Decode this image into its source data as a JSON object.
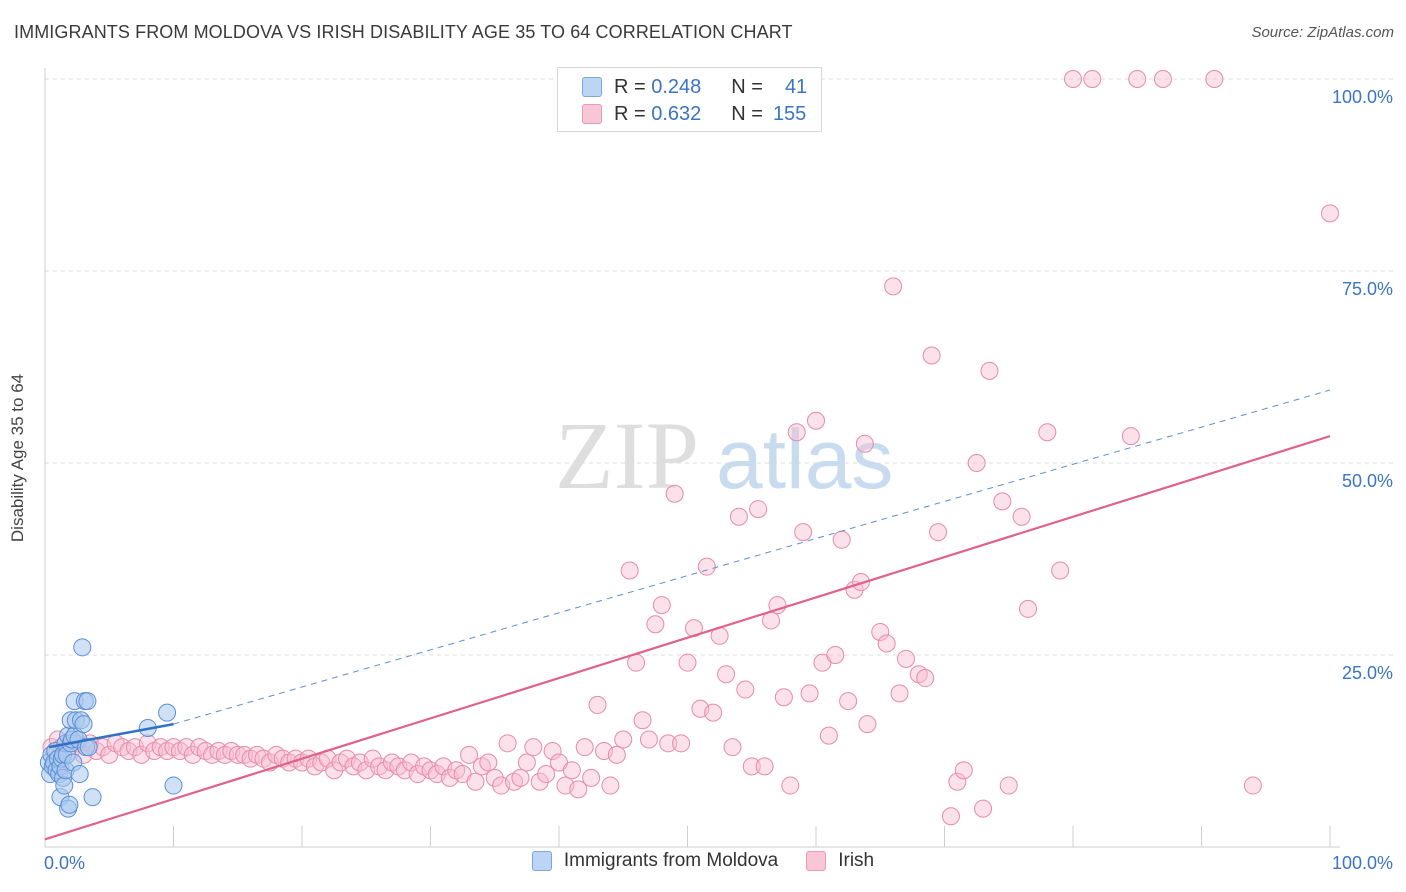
{
  "title": "IMMIGRANTS FROM MOLDOVA VS IRISH DISABILITY AGE 35 TO 64 CORRELATION CHART",
  "source": "Source: ZipAtlas.com",
  "watermark": {
    "zip": "ZIP",
    "atlas": "atlas"
  },
  "legend": {
    "rows": [
      {
        "r_label": "R =",
        "r_value": "0.248",
        "n_label": "N =",
        "n_value": "41"
      },
      {
        "r_label": "R =",
        "r_value": "0.632",
        "n_label": "N =",
        "n_value": "155"
      }
    ]
  },
  "bottom_legend": {
    "series1": "Immigrants from Moldova",
    "series2": "Irish"
  },
  "colors": {
    "blue_fill": "#a9c8ef",
    "blue_stroke": "#5b8fd6",
    "blue_line": "#3070c8",
    "pink_fill": "#f7bcd0",
    "pink_stroke": "#e88aaa",
    "pink_line": "#e0608e",
    "tick_label": "#3b74c5",
    "grid": "#dcdcdc"
  },
  "chart_data": {
    "type": "scatter",
    "title": "IMMIGRANTS FROM MOLDOVA VS IRISH DISABILITY AGE 35 TO 64 CORRELATION CHART",
    "xlabel": "",
    "ylabel": "Disability Age 35 to 64",
    "xlim": [
      0,
      100
    ],
    "ylim": [
      0,
      100
    ],
    "x_tick_labels": [
      "0.0%",
      "100.0%"
    ],
    "y_tick_labels": [
      "25.0%",
      "50.0%",
      "75.0%",
      "100.0%"
    ],
    "y_ticks": [
      25,
      50,
      75,
      100
    ],
    "series": [
      {
        "name": "Immigrants from Moldova",
        "R": 0.248,
        "N": 41,
        "trend_solid": [
          [
            0.3,
            13.0
          ],
          [
            10.0,
            16.0
          ]
        ],
        "trend_dashed": [
          [
            10.0,
            16.0
          ],
          [
            100,
            59.5
          ]
        ],
        "points": [
          [
            0.3,
            11
          ],
          [
            0.4,
            9.5
          ],
          [
            0.5,
            12
          ],
          [
            0.6,
            10.5
          ],
          [
            0.7,
            11
          ],
          [
            0.8,
            12.5
          ],
          [
            0.9,
            10
          ],
          [
            1.0,
            11.5
          ],
          [
            1.1,
            9.5
          ],
          [
            1.2,
            6.5
          ],
          [
            1.2,
            10.5
          ],
          [
            1.3,
            11.5
          ],
          [
            1.4,
            12
          ],
          [
            1.4,
            9
          ],
          [
            1.5,
            8
          ],
          [
            1.6,
            13.5
          ],
          [
            1.6,
            10
          ],
          [
            1.7,
            12
          ],
          [
            1.8,
            14.5
          ],
          [
            1.8,
            5
          ],
          [
            1.9,
            5.5
          ],
          [
            2.0,
            16.5
          ],
          [
            2.0,
            13.5
          ],
          [
            2.1,
            14
          ],
          [
            2.2,
            11
          ],
          [
            2.3,
            19
          ],
          [
            2.3,
            14.5
          ],
          [
            2.4,
            16.5
          ],
          [
            2.6,
            14
          ],
          [
            2.7,
            9.5
          ],
          [
            2.8,
            16.5
          ],
          [
            2.9,
            26
          ],
          [
            3.0,
            16
          ],
          [
            3.1,
            19
          ],
          [
            3.2,
            13
          ],
          [
            3.3,
            19
          ],
          [
            3.4,
            13
          ],
          [
            3.7,
            6.5
          ],
          [
            8.0,
            15.5
          ],
          [
            9.5,
            17.5
          ],
          [
            10.0,
            8
          ]
        ]
      },
      {
        "name": "Irish",
        "R": 0.632,
        "N": 155,
        "trend": [
          [
            0,
            1.0
          ],
          [
            100,
            53.5
          ]
        ],
        "points": [
          [
            0.5,
            13
          ],
          [
            0.8,
            12.5
          ],
          [
            1.0,
            14
          ],
          [
            1.3,
            13
          ],
          [
            1.6,
            13.5
          ],
          [
            2.0,
            12.5
          ],
          [
            2.5,
            13.5
          ],
          [
            3.0,
            12
          ],
          [
            3.5,
            13.5
          ],
          [
            4.0,
            12.5
          ],
          [
            4.5,
            13
          ],
          [
            5.0,
            12
          ],
          [
            5.5,
            13.5
          ],
          [
            6.0,
            13
          ],
          [
            6.5,
            12.5
          ],
          [
            7.0,
            13
          ],
          [
            7.5,
            12
          ],
          [
            8.0,
            13.5
          ],
          [
            8.5,
            12.5
          ],
          [
            9.0,
            13
          ],
          [
            9.5,
            12.5
          ],
          [
            10.0,
            13
          ],
          [
            10.5,
            12.5
          ],
          [
            11.0,
            13
          ],
          [
            11.5,
            12
          ],
          [
            12.0,
            13
          ],
          [
            12.5,
            12.5
          ],
          [
            13.0,
            12
          ],
          [
            13.5,
            12.5
          ],
          [
            14.0,
            12
          ],
          [
            14.5,
            12.5
          ],
          [
            15.0,
            12
          ],
          [
            15.5,
            12
          ],
          [
            16.0,
            11.5
          ],
          [
            16.5,
            12
          ],
          [
            17.0,
            11.5
          ],
          [
            17.5,
            11
          ],
          [
            18.0,
            12
          ],
          [
            18.5,
            11.5
          ],
          [
            19.0,
            11
          ],
          [
            19.5,
            11.5
          ],
          [
            20.0,
            11
          ],
          [
            20.5,
            11.5
          ],
          [
            21.0,
            10.5
          ],
          [
            21.5,
            11
          ],
          [
            22.0,
            11.5
          ],
          [
            22.5,
            10
          ],
          [
            23.0,
            11
          ],
          [
            23.5,
            11.5
          ],
          [
            24.0,
            10.5
          ],
          [
            24.5,
            11
          ],
          [
            25.0,
            10
          ],
          [
            25.5,
            11.5
          ],
          [
            26.0,
            10.5
          ],
          [
            26.5,
            10
          ],
          [
            27.0,
            11
          ],
          [
            27.5,
            10.5
          ],
          [
            28.0,
            10
          ],
          [
            28.5,
            11
          ],
          [
            29.0,
            9.5
          ],
          [
            29.5,
            10.5
          ],
          [
            30.0,
            10
          ],
          [
            30.5,
            9.5
          ],
          [
            31.0,
            10.5
          ],
          [
            31.5,
            9
          ],
          [
            32.0,
            10
          ],
          [
            32.5,
            9.5
          ],
          [
            33.0,
            12
          ],
          [
            33.5,
            8.5
          ],
          [
            34.0,
            10.5
          ],
          [
            34.5,
            11
          ],
          [
            35.0,
            9
          ],
          [
            35.5,
            8
          ],
          [
            36.0,
            13.5
          ],
          [
            36.5,
            8.5
          ],
          [
            37.0,
            9
          ],
          [
            37.5,
            11
          ],
          [
            38.0,
            13
          ],
          [
            38.5,
            8.5
          ],
          [
            39.0,
            9.5
          ],
          [
            39.5,
            12.5
          ],
          [
            40.0,
            11
          ],
          [
            40.5,
            8
          ],
          [
            41.0,
            10
          ],
          [
            41.5,
            7.5
          ],
          [
            42.0,
            13
          ],
          [
            42.5,
            9
          ],
          [
            43.0,
            18.5
          ],
          [
            43.5,
            12.5
          ],
          [
            44.0,
            8
          ],
          [
            44.5,
            12
          ],
          [
            45.0,
            14
          ],
          [
            45.5,
            36
          ],
          [
            46.0,
            24
          ],
          [
            46.5,
            16.5
          ],
          [
            47.0,
            14
          ],
          [
            47.5,
            29
          ],
          [
            48.0,
            31.5
          ],
          [
            48.5,
            13.5
          ],
          [
            49.0,
            46
          ],
          [
            49.5,
            13.5
          ],
          [
            50.0,
            24
          ],
          [
            50.5,
            28.5
          ],
          [
            51.0,
            18
          ],
          [
            51.5,
            36.5
          ],
          [
            52.0,
            17.5
          ],
          [
            52.5,
            27.5
          ],
          [
            53.0,
            22.5
          ],
          [
            53.5,
            13
          ],
          [
            54.0,
            43
          ],
          [
            54.5,
            20.5
          ],
          [
            55.0,
            10.5
          ],
          [
            55.5,
            44
          ],
          [
            56.0,
            10.5
          ],
          [
            56.5,
            29.5
          ],
          [
            57.0,
            31.5
          ],
          [
            57.5,
            19.5
          ],
          [
            58.0,
            8
          ],
          [
            58.5,
            54
          ],
          [
            59.0,
            41
          ],
          [
            59.5,
            20
          ],
          [
            60.0,
            55.5
          ],
          [
            60.5,
            24
          ],
          [
            61.0,
            14.5
          ],
          [
            61.5,
            25
          ],
          [
            62.0,
            40
          ],
          [
            62.5,
            19
          ],
          [
            63.0,
            33.5
          ],
          [
            63.5,
            34.5
          ],
          [
            63.8,
            52.5
          ],
          [
            64.0,
            16
          ],
          [
            65.0,
            28
          ],
          [
            65.5,
            26.5
          ],
          [
            66.0,
            73
          ],
          [
            66.5,
            20
          ],
          [
            67.0,
            24.5
          ],
          [
            68.0,
            22.5
          ],
          [
            68.5,
            22
          ],
          [
            69.0,
            64
          ],
          [
            69.5,
            41
          ],
          [
            70.5,
            4
          ],
          [
            71.0,
            8.5
          ],
          [
            71.5,
            10
          ],
          [
            72.5,
            50
          ],
          [
            73.0,
            5
          ],
          [
            73.5,
            62
          ],
          [
            74.5,
            45
          ],
          [
            75.0,
            8
          ],
          [
            76.0,
            43
          ],
          [
            76.5,
            31
          ],
          [
            78.0,
            54
          ],
          [
            79.0,
            36
          ],
          [
            80.0,
            100
          ],
          [
            81.5,
            100
          ],
          [
            84.5,
            53.5
          ],
          [
            85.0,
            100
          ],
          [
            87.0,
            100
          ],
          [
            91.0,
            100
          ],
          [
            94.0,
            8
          ],
          [
            100,
            82.5
          ]
        ]
      }
    ]
  }
}
